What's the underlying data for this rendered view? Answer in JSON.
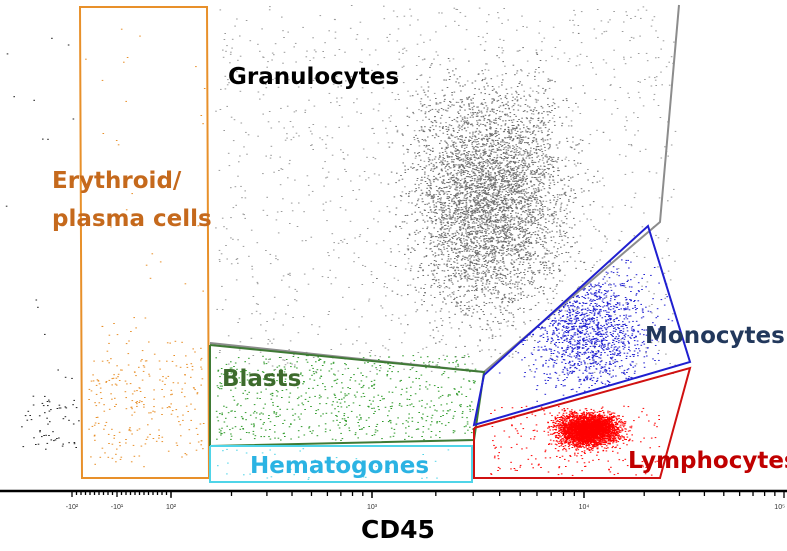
{
  "chart_data": {
    "type": "scatter",
    "xlabel": "CD45",
    "x_scale": "biexponential (log)",
    "x_ticks": [
      "-10²",
      "-10¹",
      "10²",
      "10³",
      "10⁴",
      "10⁵"
    ],
    "gates": [
      {
        "name": "Granulocytes",
        "line_color": "#8c8c8c",
        "dot_color": "#6e6e6e",
        "label_color": "#000000"
      },
      {
        "name": "Erythroid/",
        "name_line2": "plasma cells",
        "line_color": "#e8902a",
        "dot_color": "#e8902a",
        "label_color": "#c5691c"
      },
      {
        "name": "Blasts",
        "line_color": "#3f7a35",
        "dot_color": "#2f9a2a",
        "label_color": "#3d6b2c"
      },
      {
        "name": "Hematogones",
        "line_color": "#4fd4e8",
        "dot_color": "#4fd4e8",
        "label_color": "#2bb3e3"
      },
      {
        "name": "Monocytes",
        "line_color": "#1f1fd0",
        "dot_color": "#1f1fd0",
        "label_color": "#22385c"
      },
      {
        "name": "Lymphocytes",
        "line_color": "#d01010",
        "dot_color": "#ff0000",
        "label_color": "#c00000"
      }
    ],
    "grid": false,
    "legend": "none"
  }
}
